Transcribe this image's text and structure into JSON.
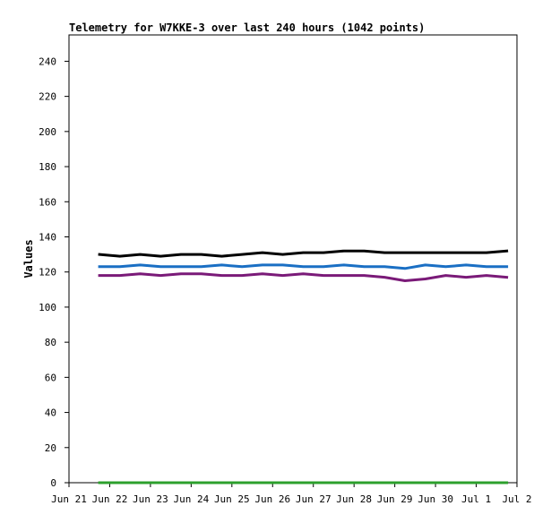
{
  "chart_data": {
    "type": "line",
    "title": "Telemetry for W7KKE-3 over last 240 hours (1042 points)",
    "xlabel": "",
    "ylabel": "Values",
    "x_ticks": [
      "Jun 21",
      "Jun 22",
      "Jun 23",
      "Jun 24",
      "Jun 25",
      "Jun 26",
      "Jun 27",
      "Jun 28",
      "Jun 29",
      "Jun 30",
      "Jul 1",
      "Jul 2"
    ],
    "xlim": [
      "Jun 21",
      "Jul 2"
    ],
    "ylim": [
      0,
      255
    ],
    "y_ticks": [
      0,
      20,
      40,
      60,
      80,
      100,
      120,
      140,
      160,
      180,
      200,
      220,
      240
    ],
    "grid": false,
    "legend": "none",
    "series": [
      {
        "color": "#000000",
        "x": [
          "Jun 21 18:00",
          "Jun 22 06:00",
          "Jun 22 18:00",
          "Jun 23 06:00",
          "Jun 23 18:00",
          "Jun 24 06:00",
          "Jun 24 18:00",
          "Jun 25 06:00",
          "Jun 25 18:00",
          "Jun 26 06:00",
          "Jun 26 18:00",
          "Jun 27 06:00",
          "Jun 27 18:00",
          "Jun 28 06:00",
          "Jun 28 18:00",
          "Jun 29 06:00",
          "Jun 29 18:00",
          "Jun 30 06:00",
          "Jun 30 18:00",
          "Jul 1 06:00",
          "Jul 1 18:00"
        ],
        "y": [
          130,
          129,
          130,
          129,
          130,
          130,
          129,
          130,
          131,
          130,
          131,
          131,
          132,
          132,
          131,
          131,
          131,
          131,
          131,
          131,
          132
        ]
      },
      {
        "color": "#1a6fc4",
        "x": [
          "Jun 21 18:00",
          "Jun 22 06:00",
          "Jun 22 18:00",
          "Jun 23 06:00",
          "Jun 23 18:00",
          "Jun 24 06:00",
          "Jun 24 18:00",
          "Jun 25 06:00",
          "Jun 25 18:00",
          "Jun 26 06:00",
          "Jun 26 18:00",
          "Jun 27 06:00",
          "Jun 27 18:00",
          "Jun 28 06:00",
          "Jun 28 18:00",
          "Jun 29 06:00",
          "Jun 29 18:00",
          "Jun 30 06:00",
          "Jun 30 18:00",
          "Jul 1 06:00",
          "Jul 1 18:00"
        ],
        "y": [
          123,
          123,
          124,
          123,
          123,
          123,
          124,
          123,
          124,
          124,
          123,
          123,
          124,
          123,
          123,
          122,
          124,
          123,
          124,
          123,
          123
        ]
      },
      {
        "color": "#7a1a78",
        "x": [
          "Jun 21 18:00",
          "Jun 22 06:00",
          "Jun 22 18:00",
          "Jun 23 06:00",
          "Jun 23 18:00",
          "Jun 24 06:00",
          "Jun 24 18:00",
          "Jun 25 06:00",
          "Jun 25 18:00",
          "Jun 26 06:00",
          "Jun 26 18:00",
          "Jun 27 06:00",
          "Jun 27 18:00",
          "Jun 28 06:00",
          "Jun 28 18:00",
          "Jun 29 06:00",
          "Jun 29 18:00",
          "Jun 30 06:00",
          "Jun 30 18:00",
          "Jul 1 06:00",
          "Jul 1 18:00"
        ],
        "y": [
          118,
          118,
          119,
          118,
          119,
          119,
          118,
          118,
          119,
          118,
          119,
          118,
          118,
          118,
          117,
          115,
          116,
          118,
          117,
          118,
          117
        ]
      },
      {
        "color": "#2ca02c",
        "x": [
          "Jun 21 18:00",
          "Jul 1 18:00"
        ],
        "y": [
          0,
          0
        ]
      }
    ]
  }
}
